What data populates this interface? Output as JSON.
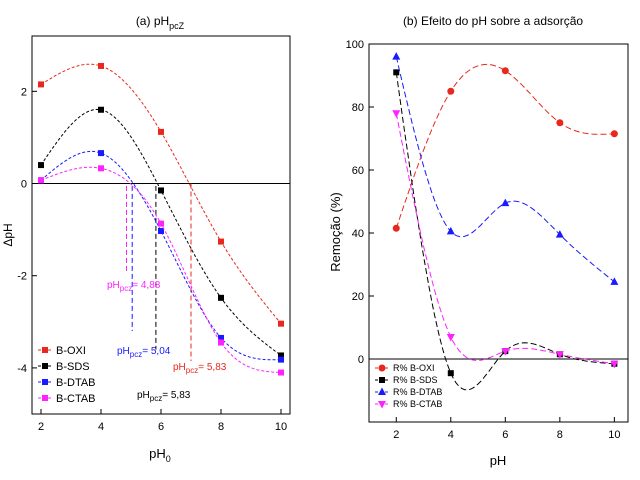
{
  "chart_data": [
    {
      "type": "scatter",
      "title_main": "(a) pH",
      "title_sub": "pcZ",
      "xlabel_main": "pH",
      "xlabel_sub": "0",
      "ylabel": "ΔpH",
      "xlim": [
        1.7,
        10.3
      ],
      "ylim": [
        -5,
        3.2
      ],
      "xticks": [
        2,
        4,
        6,
        8,
        10
      ],
      "yticks": [
        2,
        0,
        -2,
        -4
      ],
      "zero_line": true,
      "grid": false,
      "legend_position": "bottom-left",
      "colors": {
        "B-OXI": "#e8281e",
        "B-SDS": "#000000",
        "B-DTAB": "#1a1aff",
        "B-CTAB": "#ff22ff"
      },
      "series": [
        {
          "name": "B-OXI",
          "x": [
            2,
            4,
            6,
            8,
            10
          ],
          "y": [
            2.15,
            2.55,
            1.12,
            -1.26,
            -3.04
          ]
        },
        {
          "name": "B-SDS",
          "x": [
            2,
            4,
            6,
            8,
            10
          ],
          "y": [
            0.4,
            1.6,
            -0.15,
            -2.48,
            -3.73
          ]
        },
        {
          "name": "B-DTAB",
          "x": [
            2,
            4,
            6,
            8,
            10
          ],
          "y": [
            0.07,
            0.66,
            -1.03,
            -3.35,
            -3.82
          ]
        },
        {
          "name": "B-CTAB",
          "x": [
            2,
            4,
            6,
            8,
            10
          ],
          "y": [
            0.07,
            0.33,
            -0.87,
            -3.45,
            -4.1
          ]
        }
      ],
      "annotations": [
        {
          "prefix": "pH",
          "sub": "pcz",
          "value": "= 4,88",
          "color": "#ff22ff",
          "x_at": 5.04
        },
        {
          "prefix": "pH",
          "sub": "pcz",
          "value": "= 5,04",
          "color": "#1a1aff",
          "x_at": 5.04
        },
        {
          "prefix": "pH",
          "sub": "pcz",
          "value": "= 5,83",
          "color": "#000000",
          "x_at": 5.83
        },
        {
          "prefix": "pH",
          "sub": "pcz",
          "value": "= 5,83",
          "color": "#e8281e",
          "x_at": 7.0
        }
      ]
    },
    {
      "type": "scatter",
      "title": "(b) Efeito do pH sobre a adsorção",
      "xlabel": "pH",
      "ylabel": "Remoção (%)",
      "xlim": [
        1,
        10.5
      ],
      "ylim": [
        -20,
        100
      ],
      "xticks": [
        2,
        4,
        6,
        8,
        10
      ],
      "yticks": [
        0,
        20,
        40,
        60,
        80,
        100
      ],
      "zero_line": true,
      "grid": false,
      "legend_position": "bottom-left",
      "series": [
        {
          "name": "R%  B-OXI",
          "marker": "circle",
          "color": "#e8281e",
          "x": [
            2,
            4,
            6,
            8,
            10
          ],
          "y": [
            41.5,
            85,
            91.5,
            75,
            71.5
          ]
        },
        {
          "name": "R%  B-SDS",
          "marker": "square",
          "color": "#000000",
          "x": [
            2,
            4,
            6,
            8,
            10
          ],
          "y": [
            91,
            -4.5,
            2.5,
            1.5,
            -1.5
          ]
        },
        {
          "name": "R%  B-DTAB",
          "marker": "triangle-up",
          "color": "#1a1aff",
          "x": [
            2,
            4,
            6,
            8,
            10
          ],
          "y": [
            96,
            40.5,
            49.5,
            39.5,
            24.5
          ]
        },
        {
          "name": "R%  B-CTAB",
          "marker": "triangle-down",
          "color": "#ff22ff",
          "x": [
            2,
            4,
            6,
            8,
            10
          ],
          "y": [
            78,
            7,
            2.5,
            1.5,
            -1.5
          ]
        }
      ]
    }
  ]
}
